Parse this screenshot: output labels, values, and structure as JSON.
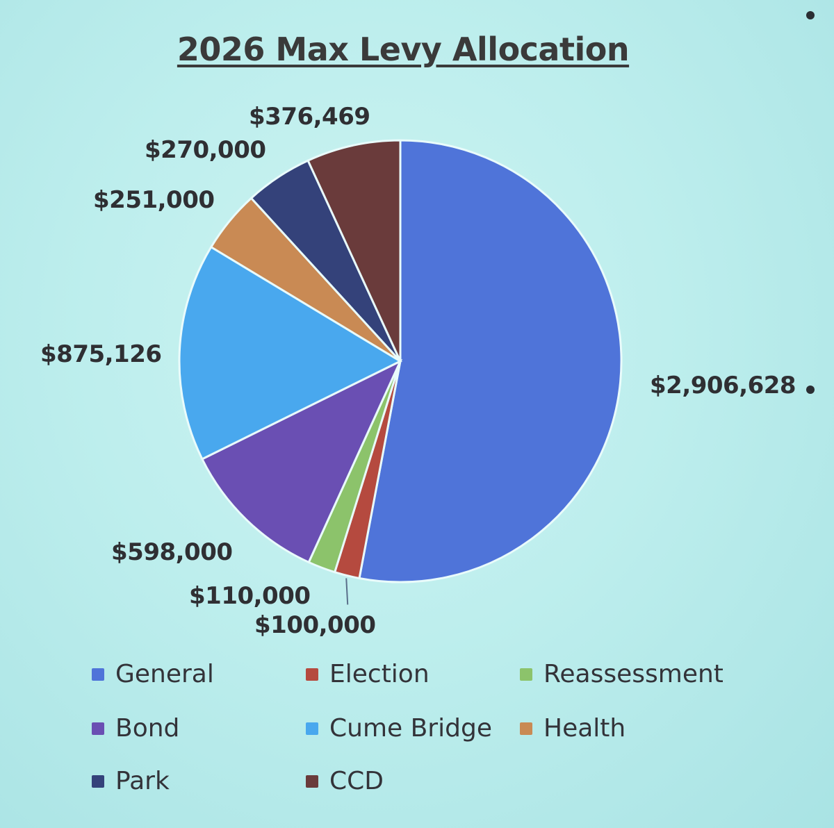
{
  "chart_data": {
    "type": "pie",
    "title": "2026 Max Levy Allocation",
    "slices": [
      {
        "name": "General",
        "value": 2906628,
        "label": "$2,906,628",
        "color": "#4f74d9"
      },
      {
        "name": "Election",
        "value": 100000,
        "label": "$100,000",
        "color": "#b54a3f"
      },
      {
        "name": "Reassessment",
        "value": 110000,
        "label": "$110,000",
        "color": "#8cc36b"
      },
      {
        "name": "Bond",
        "value": 598000,
        "label": "$598,000",
        "color": "#6a4fb3"
      },
      {
        "name": "Cume Bridge",
        "value": 875126,
        "label": "$875,126",
        "color": "#49a8ee"
      },
      {
        "name": "Health",
        "value": 251000,
        "label": "$251,000",
        "color": "#c98a54"
      },
      {
        "name": "Park",
        "value": 270000,
        "label": "$270,000",
        "color": "#34427a"
      },
      {
        "name": "CCD",
        "value": 376469,
        "label": "$376,469",
        "color": "#6a3b3b"
      }
    ],
    "legend": [
      "General",
      "Election",
      "Reassessment",
      "Bond",
      "Cume Bridge",
      "Health",
      "Park",
      "CCD"
    ],
    "legend_placement": "bottom"
  }
}
